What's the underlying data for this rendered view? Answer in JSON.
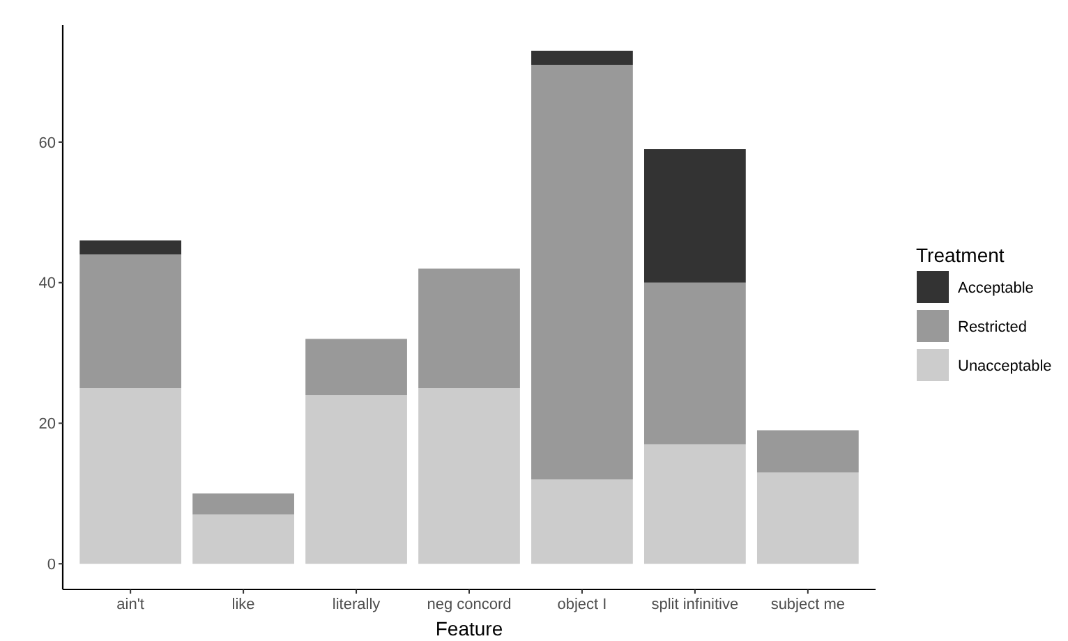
{
  "chart_data": {
    "type": "bar",
    "xlabel": "Feature",
    "legend_title": "Treatment",
    "categories": [
      "ain't",
      "like",
      "literally",
      "neg concord",
      "object I",
      "split infinitive",
      "subject me"
    ],
    "stacked": true,
    "ylim": [
      -3.65,
      76.65
    ],
    "yticks": [
      0,
      20,
      40,
      60
    ],
    "grid": false,
    "legend": "right",
    "series": [
      {
        "name": "Unacceptable",
        "color": "#cccccc",
        "values": [
          25,
          7,
          24,
          25,
          12,
          17,
          13
        ]
      },
      {
        "name": "Restricted",
        "color": "#999999",
        "values": [
          19,
          3,
          8,
          17,
          59,
          23,
          6
        ]
      },
      {
        "name": "Acceptable",
        "color": "#333333",
        "values": [
          2,
          0,
          0,
          0,
          2,
          19,
          0
        ]
      }
    ]
  }
}
